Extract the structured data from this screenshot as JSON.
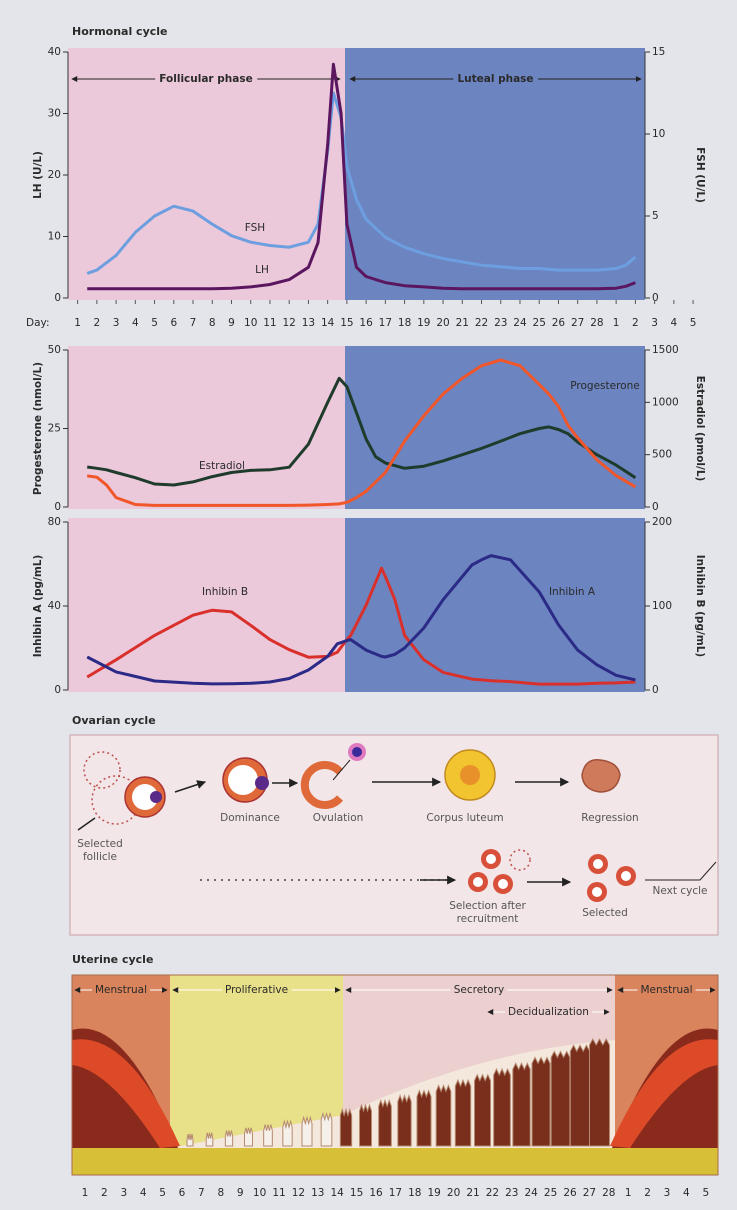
{
  "chart_data": [
    {
      "type": "line",
      "title": "Hormonal cycle",
      "xlabel": "Day:",
      "phases": [
        "Follicular phase",
        "Luteal phase"
      ],
      "ylabel": "LH (U/L)",
      "y2label": "FSH (U/L)",
      "xlim": [
        0.5,
        30.5
      ],
      "xticks": [
        1,
        2,
        3,
        4,
        5,
        6,
        7,
        8,
        9,
        10,
        11,
        12,
        13,
        14,
        15,
        16,
        17,
        18,
        19,
        20,
        21,
        22,
        23,
        24,
        25,
        26,
        27,
        28,
        {
          "value": 29,
          "label": "1"
        },
        {
          "value": 30,
          "label": "2"
        },
        {
          "value": 31,
          "label": "3"
        },
        {
          "value": 32,
          "label": "4"
        },
        {
          "value": 33,
          "label": "5"
        }
      ],
      "ylim": [
        0,
        40
      ],
      "yticks": [
        0,
        10,
        20,
        30,
        40
      ],
      "y2lim": [
        0,
        15
      ],
      "y2ticks": [
        0,
        5,
        10,
        15
      ],
      "x": [
        1.5,
        2,
        3,
        4,
        5,
        6,
        7,
        8,
        9,
        10,
        11,
        12,
        13,
        13.5,
        14,
        14.3,
        14.7,
        15,
        15.5,
        16,
        17,
        18,
        19,
        20,
        21,
        22,
        23,
        24,
        25,
        26,
        27,
        28,
        29,
        29.5,
        30
      ],
      "series": [
        {
          "name": "FSH",
          "color": "#6d9fe0",
          "axis": "y2",
          "values": [
            1.5,
            1.7,
            2.6,
            4.0,
            5.0,
            5.6,
            5.3,
            4.5,
            3.8,
            3.4,
            3.2,
            3.1,
            3.4,
            4.5,
            9.0,
            12.5,
            11.0,
            8.0,
            6.0,
            4.8,
            3.7,
            3.1,
            2.7,
            2.4,
            2.2,
            2.0,
            1.9,
            1.8,
            1.8,
            1.7,
            1.7,
            1.7,
            1.8,
            2.0,
            2.5
          ]
        },
        {
          "name": "LH",
          "color": "#5b1660",
          "values": [
            1.5,
            1.5,
            1.5,
            1.5,
            1.5,
            1.5,
            1.5,
            1.5,
            1.6,
            1.8,
            2.2,
            3.0,
            5.0,
            9.0,
            25,
            38,
            30,
            12,
            5,
            3.5,
            2.5,
            2.0,
            1.8,
            1.6,
            1.5,
            1.5,
            1.5,
            1.5,
            1.5,
            1.5,
            1.5,
            1.5,
            1.6,
            1.9,
            2.5
          ]
        }
      ]
    },
    {
      "type": "line",
      "ylabel": "Progesterone (nmol/L)",
      "y2label": "Estradiol (pmol/L)",
      "xlim": [
        0.5,
        30.5
      ],
      "ylim": [
        0,
        50
      ],
      "yticks": [
        0,
        25,
        50
      ],
      "y2lim": [
        0,
        1500
      ],
      "y2ticks": [
        0,
        500,
        1000,
        1500
      ],
      "x": [
        1.5,
        2,
        2.5,
        3,
        4,
        5,
        6,
        7,
        8,
        9,
        10,
        11,
        12,
        13,
        14,
        14.6,
        15,
        15.5,
        16,
        16.5,
        17,
        18,
        19,
        20,
        21,
        22,
        23,
        24,
        25,
        25.5,
        26,
        26.5,
        27,
        28,
        29,
        30
      ],
      "series": [
        {
          "name": "Estradiol",
          "color": "#1e3b2c",
          "axis": "y2",
          "values": [
            382,
            370,
            355,
            330,
            280,
            220,
            210,
            240,
            290,
            330,
            350,
            355,
            380,
            600,
            1000,
            1230,
            1150,
            900,
            650,
            480,
            420,
            370,
            390,
            440,
            500,
            560,
            630,
            700,
            750,
            765,
            740,
            700,
            620,
            500,
            400,
            280
          ]
        },
        {
          "name": "Progesterone",
          "color": "#f0562a",
          "values": [
            9.9,
            9.5,
            7,
            3,
            0.8,
            0.5,
            0.5,
            0.5,
            0.5,
            0.5,
            0.5,
            0.5,
            0.5,
            0.6,
            0.8,
            1,
            1.5,
            3,
            5,
            8,
            11,
            21,
            29,
            36,
            41,
            45,
            46.8,
            45,
            39,
            36,
            32,
            26,
            22,
            15,
            10,
            6.4
          ]
        }
      ]
    },
    {
      "type": "line",
      "ylabel": "Inhibin A (pg/mL)",
      "y2label": "Inhibin B (pg/mL)",
      "xlim": [
        0.5,
        30.5
      ],
      "ylim": [
        0,
        80
      ],
      "yticks": [
        0,
        40,
        80
      ],
      "y2lim": [
        0,
        200
      ],
      "y2ticks": [
        0,
        100,
        200
      ],
      "x": [
        1.5,
        3,
        5,
        7,
        8,
        9,
        10,
        11,
        12,
        13,
        14,
        14.5,
        15,
        15.2,
        16,
        16.8,
        17,
        17.5,
        18,
        19,
        20,
        21.5,
        22,
        22.5,
        23.5,
        25,
        26,
        27,
        28,
        29,
        30
      ],
      "series": [
        {
          "name": "Inhibin B",
          "color": "#d9302c",
          "axis": "y2",
          "values": [
            15.5,
            36,
            65,
            89,
            95,
            93,
            77,
            60,
            48,
            39,
            40,
            45,
            60,
            65,
            101,
            145,
            135,
            107,
            65,
            36,
            21,
            13,
            12,
            11,
            10,
            7,
            7,
            7,
            8,
            8.5,
            9.5
          ]
        },
        {
          "name": "Inhibin A",
          "color": "#2b2a86",
          "values": [
            15.7,
            8.6,
            4.3,
            3.2,
            2.9,
            3,
            3.2,
            3.8,
            5.5,
            9.5,
            16,
            22,
            23.5,
            24,
            19,
            16,
            15.7,
            17,
            20,
            29.5,
            43,
            59.5,
            62,
            64,
            62,
            46.7,
            31,
            19,
            12,
            7,
            4.8
          ]
        }
      ]
    }
  ],
  "ovarian_cycle": {
    "title": "Ovarian cycle",
    "stages": [
      "Selected follicle",
      "Dominance",
      "Ovulation",
      "Corpus luteum",
      "Regression"
    ],
    "recruitment": [
      "Selection after recruitment",
      "Selected",
      "Next cycle"
    ]
  },
  "uterine_cycle": {
    "title": "Uterine cycle",
    "phases": [
      "Menstrual",
      "Proliferative",
      "Secretory",
      "Decidualization",
      "Menstrual"
    ],
    "days": [
      1,
      2,
      3,
      4,
      5,
      6,
      7,
      8,
      9,
      10,
      11,
      12,
      13,
      14,
      15,
      16,
      17,
      18,
      19,
      20,
      21,
      22,
      23,
      24,
      25,
      26,
      27,
      28,
      1,
      2,
      3,
      4,
      5
    ]
  }
}
